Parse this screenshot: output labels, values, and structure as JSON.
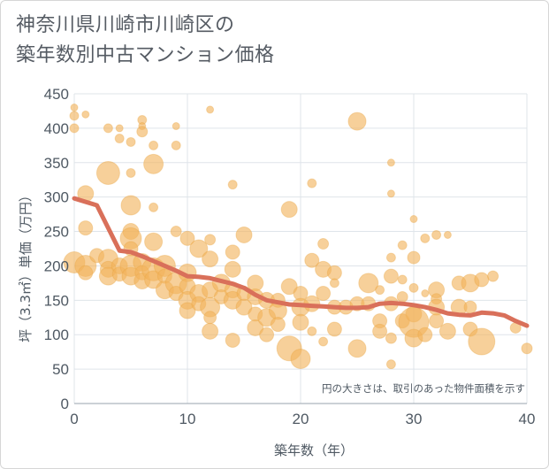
{
  "chart_data": {
    "type": "scatter",
    "title": [
      "神奈川県川崎市川崎区の",
      "築年数別中古マンション価格"
    ],
    "xlabel": "築年数（年）",
    "ylabel": "坪（3.3㎡）単価（万円）",
    "xlim": [
      0,
      40
    ],
    "ylim": [
      0,
      450
    ],
    "xticks": [
      0,
      10,
      20,
      30,
      40
    ],
    "yticks": [
      0,
      50,
      100,
      150,
      200,
      250,
      300,
      350,
      400,
      450
    ],
    "grid": true,
    "note": "円の大きさは、取引のあった物件面積を示す",
    "colors": {
      "bubble": "#f2b35c",
      "trend": "#d9705a",
      "grid": "#dfe4ea",
      "text": "#4f5963"
    },
    "trend_line": {
      "x": [
        0,
        2,
        4,
        5,
        6,
        7,
        8,
        9,
        10,
        11,
        12,
        13,
        14,
        15,
        16,
        17,
        18,
        19,
        20,
        21,
        22,
        23,
        24,
        25,
        26,
        27,
        28,
        29,
        30,
        31,
        32,
        33,
        34,
        35,
        36,
        37,
        38,
        39,
        40
      ],
      "y": [
        298,
        288,
        222,
        220,
        214,
        207,
        200,
        193,
        185,
        184,
        182,
        178,
        174,
        168,
        158,
        150,
        147,
        144,
        143,
        142,
        141,
        140,
        139,
        139,
        140,
        145,
        146,
        145,
        143,
        140,
        136,
        131,
        129,
        128,
        132,
        131,
        128,
        120,
        113
      ]
    },
    "points": [
      {
        "x": 0,
        "y": 430,
        "r": 4
      },
      {
        "x": 0,
        "y": 418,
        "r": 5
      },
      {
        "x": 0,
        "y": 400,
        "r": 5
      },
      {
        "x": 1,
        "y": 420,
        "r": 4
      },
      {
        "x": 3,
        "y": 400,
        "r": 5
      },
      {
        "x": 4,
        "y": 400,
        "r": 4
      },
      {
        "x": 4,
        "y": 385,
        "r": 5
      },
      {
        "x": 5,
        "y": 380,
        "r": 5
      },
      {
        "x": 6,
        "y": 412,
        "r": 5
      },
      {
        "x": 6,
        "y": 403,
        "r": 4
      },
      {
        "x": 6,
        "y": 395,
        "r": 6
      },
      {
        "x": 7,
        "y": 375,
        "r": 5
      },
      {
        "x": 9,
        "y": 403,
        "r": 4
      },
      {
        "x": 9,
        "y": 375,
        "r": 5
      },
      {
        "x": 12,
        "y": 427,
        "r": 4
      },
      {
        "x": 3,
        "y": 335,
        "r": 13
      },
      {
        "x": 7,
        "y": 348,
        "r": 11
      },
      {
        "x": 5,
        "y": 335,
        "r": 5
      },
      {
        "x": 14,
        "y": 318,
        "r": 5
      },
      {
        "x": 1,
        "y": 305,
        "r": 9
      },
      {
        "x": 5,
        "y": 288,
        "r": 11
      },
      {
        "x": 7,
        "y": 285,
        "r": 5
      },
      {
        "x": 1,
        "y": 255,
        "r": 8
      },
      {
        "x": 5,
        "y": 250,
        "r": 9
      },
      {
        "x": 5,
        "y": 240,
        "r": 12
      },
      {
        "x": 7,
        "y": 235,
        "r": 10
      },
      {
        "x": 9,
        "y": 250,
        "r": 6
      },
      {
        "x": 10,
        "y": 240,
        "r": 8
      },
      {
        "x": 11,
        "y": 225,
        "r": 10
      },
      {
        "x": 12,
        "y": 238,
        "r": 6
      },
      {
        "x": 15,
        "y": 245,
        "r": 9
      },
      {
        "x": 14,
        "y": 220,
        "r": 8
      },
      {
        "x": 0,
        "y": 205,
        "r": 12
      },
      {
        "x": 1,
        "y": 200,
        "r": 12
      },
      {
        "x": 1,
        "y": 190,
        "r": 8
      },
      {
        "x": 2,
        "y": 215,
        "r": 8
      },
      {
        "x": 3,
        "y": 210,
        "r": 11
      },
      {
        "x": 3,
        "y": 195,
        "r": 9
      },
      {
        "x": 3,
        "y": 185,
        "r": 10
      },
      {
        "x": 4,
        "y": 200,
        "r": 9
      },
      {
        "x": 4,
        "y": 188,
        "r": 8
      },
      {
        "x": 5,
        "y": 200,
        "r": 12
      },
      {
        "x": 5,
        "y": 185,
        "r": 10
      },
      {
        "x": 5,
        "y": 225,
        "r": 8
      },
      {
        "x": 6,
        "y": 205,
        "r": 10
      },
      {
        "x": 6,
        "y": 190,
        "r": 8
      },
      {
        "x": 6,
        "y": 178,
        "r": 9
      },
      {
        "x": 7,
        "y": 195,
        "r": 13
      },
      {
        "x": 7,
        "y": 180,
        "r": 10
      },
      {
        "x": 8,
        "y": 200,
        "r": 12
      },
      {
        "x": 8,
        "y": 185,
        "r": 8
      },
      {
        "x": 8,
        "y": 165,
        "r": 10
      },
      {
        "x": 9,
        "y": 175,
        "r": 12
      },
      {
        "x": 9,
        "y": 160,
        "r": 8
      },
      {
        "x": 10,
        "y": 190,
        "r": 10
      },
      {
        "x": 10,
        "y": 170,
        "r": 9
      },
      {
        "x": 10,
        "y": 150,
        "r": 10
      },
      {
        "x": 10,
        "y": 135,
        "r": 9
      },
      {
        "x": 11,
        "y": 160,
        "r": 10
      },
      {
        "x": 11,
        "y": 145,
        "r": 8
      },
      {
        "x": 12,
        "y": 210,
        "r": 9
      },
      {
        "x": 12,
        "y": 165,
        "r": 9
      },
      {
        "x": 12,
        "y": 140,
        "r": 11
      },
      {
        "x": 12,
        "y": 125,
        "r": 7
      },
      {
        "x": 12,
        "y": 105,
        "r": 9
      },
      {
        "x": 13,
        "y": 175,
        "r": 10
      },
      {
        "x": 13,
        "y": 155,
        "r": 8
      },
      {
        "x": 14,
        "y": 195,
        "r": 9
      },
      {
        "x": 14,
        "y": 165,
        "r": 9
      },
      {
        "x": 14,
        "y": 150,
        "r": 10
      },
      {
        "x": 15,
        "y": 160,
        "r": 8
      },
      {
        "x": 15,
        "y": 140,
        "r": 9
      },
      {
        "x": 16,
        "y": 175,
        "r": 9
      },
      {
        "x": 16,
        "y": 155,
        "r": 9
      },
      {
        "x": 16,
        "y": 130,
        "r": 8
      },
      {
        "x": 16,
        "y": 110,
        "r": 9
      },
      {
        "x": 17,
        "y": 150,
        "r": 9
      },
      {
        "x": 17,
        "y": 125,
        "r": 10
      },
      {
        "x": 17,
        "y": 100,
        "r": 8
      },
      {
        "x": 14,
        "y": 92,
        "r": 8
      },
      {
        "x": 18,
        "y": 150,
        "r": 8
      },
      {
        "x": 18,
        "y": 135,
        "r": 10
      },
      {
        "x": 18,
        "y": 115,
        "r": 8
      },
      {
        "x": 19,
        "y": 170,
        "r": 9
      },
      {
        "x": 19,
        "y": 282,
        "r": 9
      },
      {
        "x": 19,
        "y": 80,
        "r": 14
      },
      {
        "x": 20,
        "y": 65,
        "r": 11
      },
      {
        "x": 20,
        "y": 160,
        "r": 8
      },
      {
        "x": 20,
        "y": 140,
        "r": 10
      },
      {
        "x": 20,
        "y": 118,
        "r": 9
      },
      {
        "x": 21,
        "y": 320,
        "r": 5
      },
      {
        "x": 21,
        "y": 208,
        "r": 8
      },
      {
        "x": 21,
        "y": 145,
        "r": 9
      },
      {
        "x": 21,
        "y": 105,
        "r": 5
      },
      {
        "x": 22,
        "y": 232,
        "r": 6
      },
      {
        "x": 22,
        "y": 195,
        "r": 9
      },
      {
        "x": 22,
        "y": 160,
        "r": 8
      },
      {
        "x": 22,
        "y": 90,
        "r": 5
      },
      {
        "x": 23,
        "y": 190,
        "r": 8
      },
      {
        "x": 23,
        "y": 175,
        "r": 5
      },
      {
        "x": 23,
        "y": 140,
        "r": 8
      },
      {
        "x": 23,
        "y": 108,
        "r": 8
      },
      {
        "x": 24,
        "y": 140,
        "r": 8
      },
      {
        "x": 25,
        "y": 410,
        "r": 10
      },
      {
        "x": 25,
        "y": 145,
        "r": 8
      },
      {
        "x": 25,
        "y": 80,
        "r": 10
      },
      {
        "x": 26,
        "y": 175,
        "r": 11
      },
      {
        "x": 26,
        "y": 145,
        "r": 8
      },
      {
        "x": 27,
        "y": 165,
        "r": 5
      },
      {
        "x": 27,
        "y": 120,
        "r": 8
      },
      {
        "x": 27,
        "y": 105,
        "r": 8
      },
      {
        "x": 28,
        "y": 350,
        "r": 4
      },
      {
        "x": 28,
        "y": 305,
        "r": 4
      },
      {
        "x": 28,
        "y": 212,
        "r": 5
      },
      {
        "x": 28,
        "y": 185,
        "r": 8
      },
      {
        "x": 28,
        "y": 145,
        "r": 8
      },
      {
        "x": 28,
        "y": 95,
        "r": 6
      },
      {
        "x": 28,
        "y": 57,
        "r": 5
      },
      {
        "x": 29,
        "y": 230,
        "r": 5
      },
      {
        "x": 29,
        "y": 180,
        "r": 5
      },
      {
        "x": 29,
        "y": 155,
        "r": 6
      },
      {
        "x": 29,
        "y": 120,
        "r": 8
      },
      {
        "x": 30,
        "y": 268,
        "r": 4
      },
      {
        "x": 30,
        "y": 212,
        "r": 7
      },
      {
        "x": 30,
        "y": 168,
        "r": 5
      },
      {
        "x": 30,
        "y": 130,
        "r": 9
      },
      {
        "x": 30,
        "y": 118,
        "r": 17
      },
      {
        "x": 30,
        "y": 95,
        "r": 10
      },
      {
        "x": 31,
        "y": 240,
        "r": 5
      },
      {
        "x": 31,
        "y": 160,
        "r": 4
      },
      {
        "x": 31,
        "y": 100,
        "r": 8
      },
      {
        "x": 32,
        "y": 245,
        "r": 5
      },
      {
        "x": 32,
        "y": 165,
        "r": 9
      },
      {
        "x": 32,
        "y": 152,
        "r": 6
      },
      {
        "x": 32,
        "y": 140,
        "r": 9
      },
      {
        "x": 32,
        "y": 120,
        "r": 8
      },
      {
        "x": 33,
        "y": 245,
        "r": 4
      },
      {
        "x": 33,
        "y": 105,
        "r": 9
      },
      {
        "x": 34,
        "y": 175,
        "r": 8
      },
      {
        "x": 34,
        "y": 140,
        "r": 9
      },
      {
        "x": 35,
        "y": 175,
        "r": 10
      },
      {
        "x": 35,
        "y": 140,
        "r": 7
      },
      {
        "x": 35,
        "y": 108,
        "r": 8
      },
      {
        "x": 36,
        "y": 180,
        "r": 8
      },
      {
        "x": 36,
        "y": 90,
        "r": 15
      },
      {
        "x": 37,
        "y": 185,
        "r": 6
      },
      {
        "x": 39,
        "y": 110,
        "r": 6
      },
      {
        "x": 40,
        "y": 80,
        "r": 6
      }
    ]
  }
}
